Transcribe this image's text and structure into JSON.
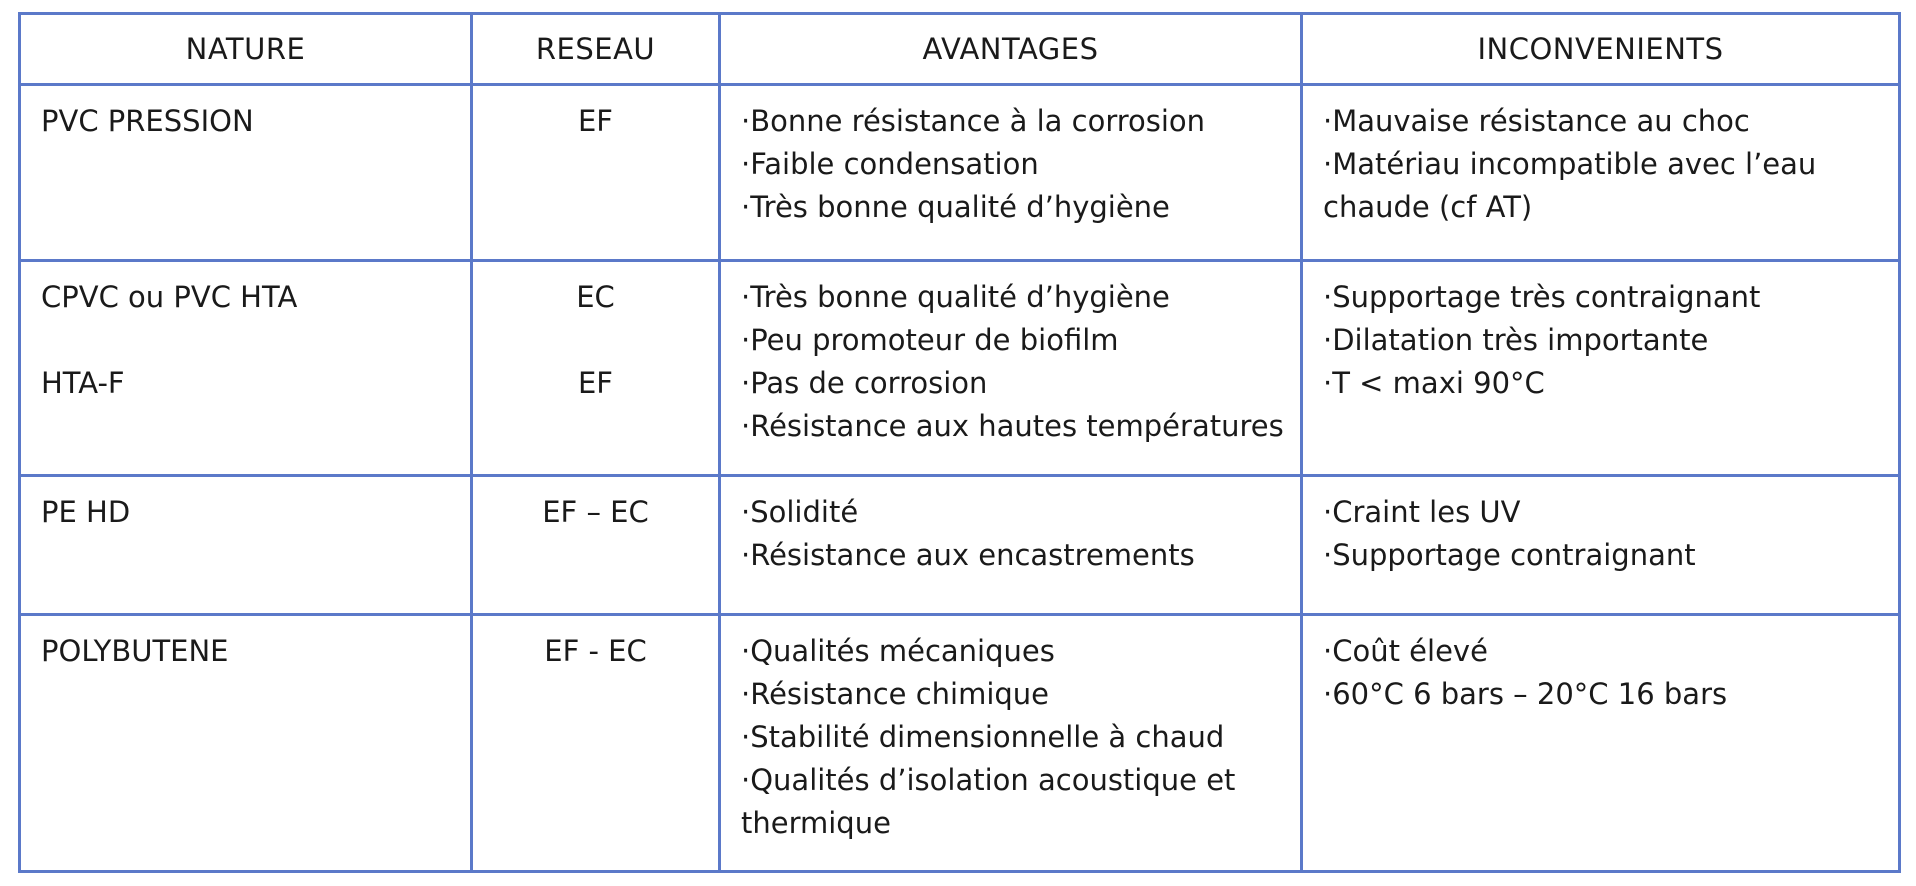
{
  "table": {
    "headers": [
      "NATURE",
      "RESEAU",
      "AVANTAGES",
      "INCONVENIENTS"
    ],
    "rows": [
      {
        "nature": [
          "PVC PRESSION"
        ],
        "reseau": [
          "EF"
        ],
        "avantages": [
          "·Bonne résistance à la corrosion",
          "·Faible condensation",
          "·Très bonne qualité d’hygiène"
        ],
        "inconvenients": [
          "·Mauvaise résistance au choc",
          "·Matériau incompatible avec l’eau chaude (cf AT)"
        ]
      },
      {
        "nature": [
          "CPVC ou PVC HTA",
          "",
          "HTA-F"
        ],
        "reseau": [
          "EC",
          "",
          "EF"
        ],
        "avantages": [
          "·Très bonne qualité d’hygiène",
          "·Peu promoteur de biofilm",
          "·Pas de corrosion",
          "·Résistance aux hautes températures"
        ],
        "inconvenients": [
          "·Supportage très contraignant",
          "·Dilatation très importante",
          "·T < maxi 90°C"
        ]
      },
      {
        "nature": [
          "PE HD"
        ],
        "reseau": [
          "EF – EC"
        ],
        "avantages": [
          "·Solidité",
          "·Résistance aux encastrements"
        ],
        "inconvenients": [
          "·Craint les UV",
          "·Supportage contraignant"
        ]
      },
      {
        "nature": [
          "POLYBUTENE"
        ],
        "reseau": [
          "EF - EC"
        ],
        "avantages": [
          "·Qualités mécaniques",
          "·Résistance chimique",
          "·Stabilité dimensionnelle à chaud",
          "·Qualités d’isolation acoustique et thermique"
        ],
        "inconvenients": [
          "·Coût élevé",
          "·60°C 6 bars – 20°C 16 bars"
        ]
      }
    ]
  },
  "colors": {
    "border": "#5b79c9",
    "text": "#1a1a1a",
    "background": "#ffffff"
  }
}
